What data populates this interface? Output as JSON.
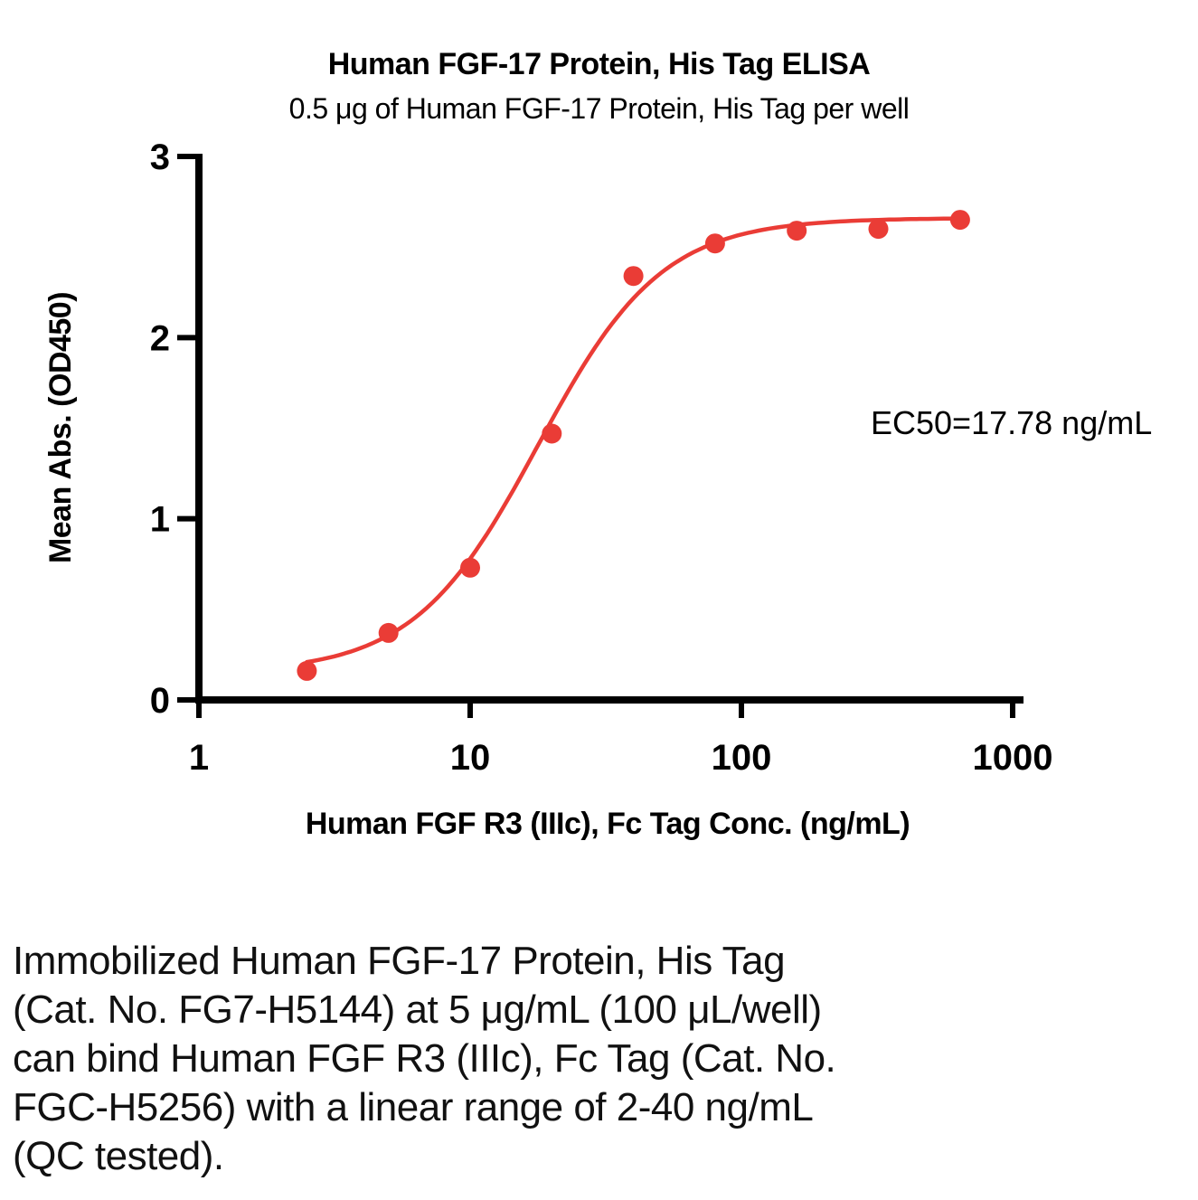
{
  "chart_data": {
    "type": "scatter",
    "title": "Human FGF-17 Protein, His Tag ELISA",
    "subtitle": "0.5 μg of Human FGF-17 Protein, His Tag per well",
    "xlabel": "Human FGF R3 (IIIc), Fc Tag Conc. (ng/mL)",
    "ylabel": "Mean Abs. (OD450)",
    "x_scale": "log10",
    "xlim": [
      1,
      1000
    ],
    "ylim": [
      0,
      3
    ],
    "x_ticks": [
      1,
      10,
      100,
      1000
    ],
    "x_tick_labels": [
      "1",
      "10",
      "100",
      "1000"
    ],
    "y_ticks": [
      0,
      1,
      2,
      3
    ],
    "y_tick_labels": [
      "0",
      "1",
      "2",
      "3"
    ],
    "grid": false,
    "legend": false,
    "x": [
      2.5,
      5,
      10,
      20,
      40,
      80,
      160,
      320,
      640
    ],
    "y": [
      0.16,
      0.37,
      0.73,
      1.47,
      2.34,
      2.52,
      2.59,
      2.6,
      2.65
    ],
    "annotation": "EC50=17.78 ng/mL",
    "curve_fit": {
      "model": "4PL",
      "bottom": 0.15,
      "top": 2.66,
      "ec50": 17.78,
      "hill": 1.9
    },
    "marker_color": "#EA3C36",
    "line_color": "#EA3C36",
    "axis_color": "#000000"
  },
  "caption": {
    "lines": [
      "Immobilized Human FGF-17 Protein, His Tag",
      "(Cat. No. FG7-H5144) at 5 μg/mL (100 μL/well)",
      "can bind Human FGF R3 (IIIc), Fc Tag (Cat. No.",
      "FGC-H5256) with a linear range of 2-40 ng/mL",
      "(QC tested)."
    ]
  }
}
